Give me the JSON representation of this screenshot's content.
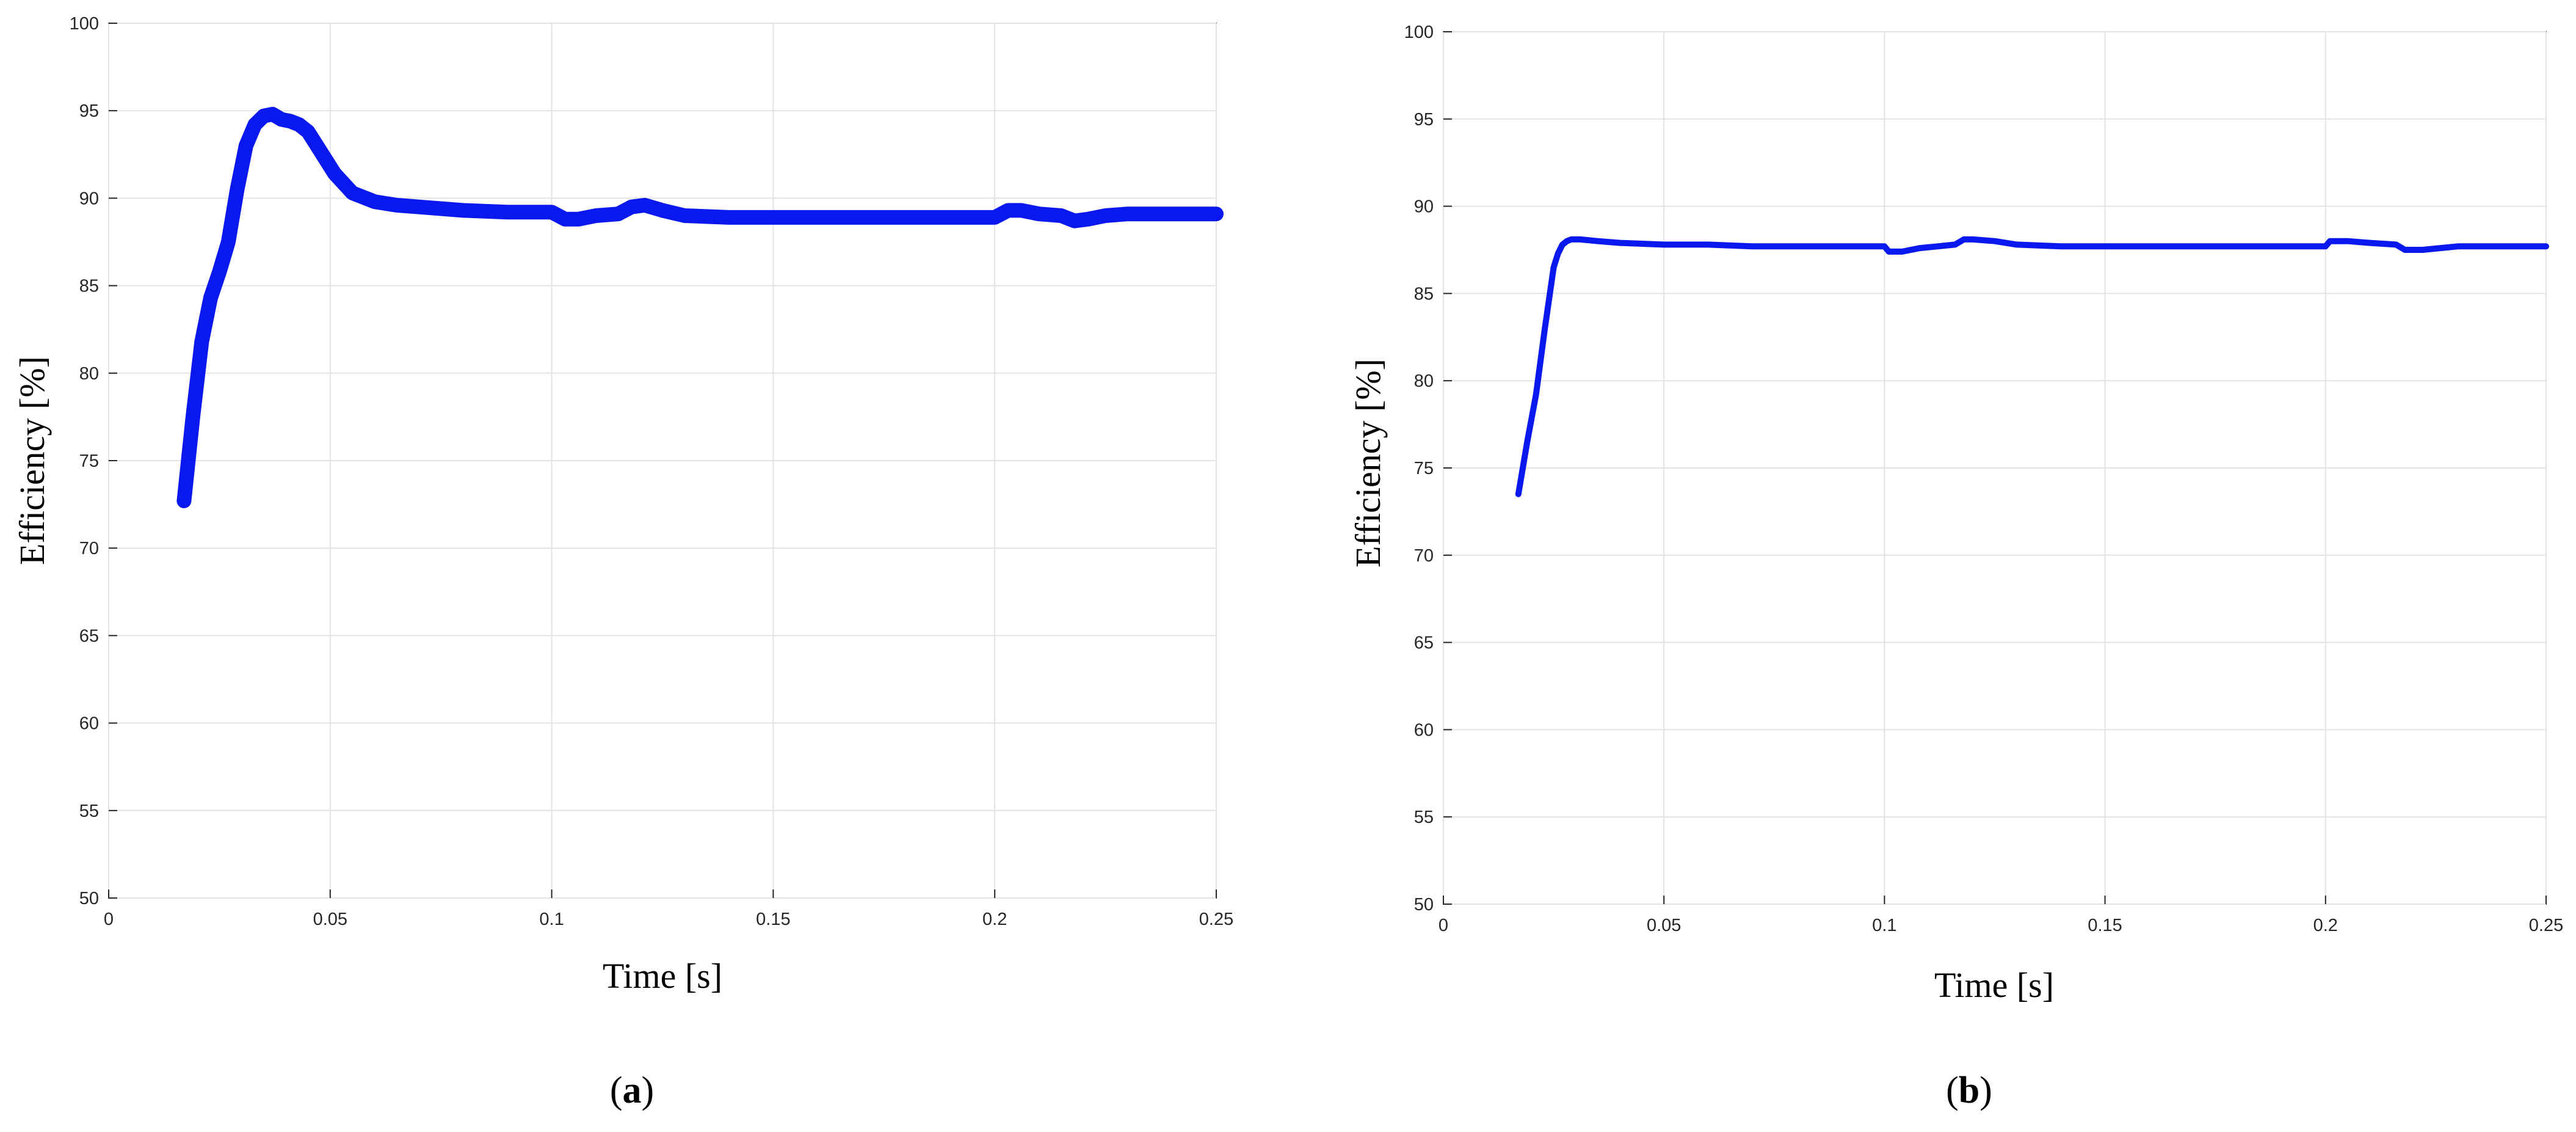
{
  "chart_data": [
    {
      "type": "line",
      "caption": "a",
      "xlabel": "Time [s]",
      "ylabel": "Efficiency [%]",
      "xlim": [
        0,
        0.25
      ],
      "ylim": [
        50,
        100
      ],
      "xticks": [
        "0",
        "0.05",
        "0.1",
        "0.15",
        "0.2",
        "0.25"
      ],
      "yticks": [
        "50",
        "55",
        "60",
        "65",
        "70",
        "75",
        "80",
        "85",
        "90",
        "95",
        "100"
      ],
      "grid": true,
      "line_color": "#0a18f0",
      "series": [
        {
          "x": [
            0.017,
            0.019,
            0.021,
            0.023,
            0.025,
            0.027,
            0.029,
            0.031,
            0.033,
            0.035,
            0.037,
            0.039,
            0.041,
            0.043,
            0.045,
            0.048,
            0.051,
            0.055,
            0.06,
            0.065,
            0.07,
            0.08,
            0.09,
            0.1,
            0.103,
            0.106,
            0.11,
            0.115,
            0.118,
            0.121,
            0.125,
            0.13,
            0.14,
            0.15,
            0.16,
            0.17,
            0.18,
            0.19,
            0.2,
            0.203,
            0.206,
            0.21,
            0.215,
            0.218,
            0.221,
            0.225,
            0.23,
            0.24,
            0.25
          ],
          "y": [
            72.7,
            77.5,
            81.8,
            84.3,
            85.8,
            87.5,
            90.5,
            93.0,
            94.2,
            94.7,
            94.8,
            94.5,
            94.4,
            94.2,
            93.8,
            92.6,
            91.4,
            90.3,
            89.8,
            89.6,
            89.5,
            89.3,
            89.2,
            89.2,
            88.8,
            88.8,
            89.0,
            89.1,
            89.5,
            89.6,
            89.3,
            89.0,
            88.9,
            88.9,
            88.9,
            88.9,
            88.9,
            88.9,
            88.9,
            89.3,
            89.3,
            89.1,
            89.0,
            88.7,
            88.8,
            89.0,
            89.1,
            89.1,
            89.1
          ]
        }
      ]
    },
    {
      "type": "line",
      "caption": "b",
      "xlabel": "Time [s]",
      "ylabel": "Efficiency [%]",
      "xlim": [
        0,
        0.25
      ],
      "ylim": [
        50,
        100
      ],
      "xticks": [
        "0",
        "0.05",
        "0.1",
        "0.15",
        "0.2",
        "0.25"
      ],
      "yticks": [
        "50",
        "55",
        "60",
        "65",
        "70",
        "75",
        "80",
        "85",
        "90",
        "95",
        "100"
      ],
      "grid": true,
      "line_color": "#0a18f0",
      "series": [
        {
          "x": [
            0.017,
            0.019,
            0.021,
            0.023,
            0.025,
            0.026,
            0.027,
            0.028,
            0.029,
            0.031,
            0.035,
            0.04,
            0.05,
            0.06,
            0.07,
            0.08,
            0.09,
            0.1,
            0.101,
            0.104,
            0.108,
            0.112,
            0.116,
            0.118,
            0.12,
            0.125,
            0.13,
            0.14,
            0.15,
            0.16,
            0.17,
            0.18,
            0.19,
            0.2,
            0.201,
            0.205,
            0.21,
            0.216,
            0.218,
            0.222,
            0.226,
            0.23,
            0.24,
            0.25
          ],
          "y": [
            73.5,
            76.5,
            79.2,
            83.0,
            86.5,
            87.3,
            87.8,
            88.0,
            88.1,
            88.1,
            88.0,
            87.9,
            87.8,
            87.8,
            87.7,
            87.7,
            87.7,
            87.7,
            87.4,
            87.4,
            87.6,
            87.7,
            87.8,
            88.1,
            88.1,
            88.0,
            87.8,
            87.7,
            87.7,
            87.7,
            87.7,
            87.7,
            87.7,
            87.7,
            88.0,
            88.0,
            87.9,
            87.8,
            87.5,
            87.5,
            87.6,
            87.7,
            87.7,
            87.7
          ]
        }
      ]
    }
  ]
}
